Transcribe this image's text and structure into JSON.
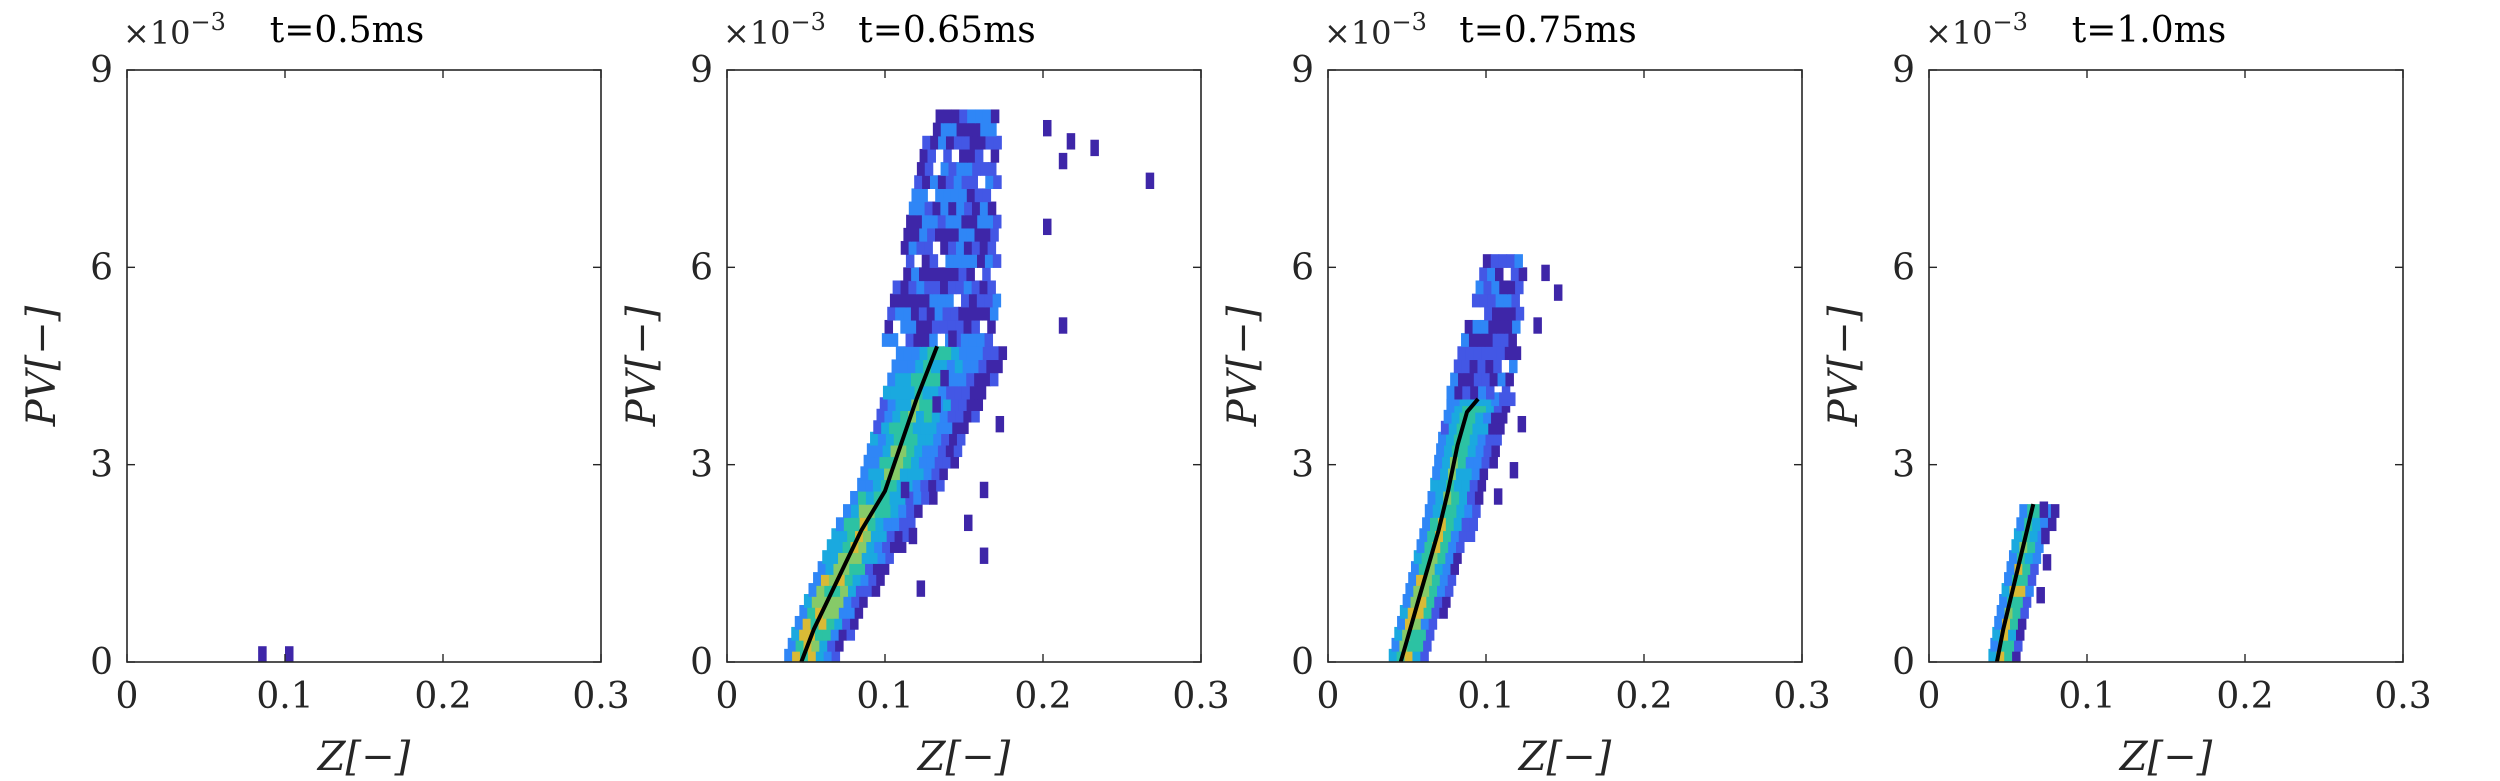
{
  "chart_data": [
    {
      "type": "heatmap",
      "title": "t=0.5ms",
      "xlabel": "Z[−]",
      "ylabel": "PV[−]",
      "xlim": [
        0,
        0.3
      ],
      "ylim": [
        0,
        0.009
      ],
      "xticks": [
        "0",
        "0.1",
        "0.2",
        "0.3"
      ],
      "yticks": [
        "0",
        "3",
        "6",
        "9"
      ],
      "y_exponent": "×10",
      "y_exponent_power": "−3",
      "bins": [
        [
          0.083,
          0.0
        ],
        [
          0.1,
          0.0
        ]
      ],
      "mean_curve": []
    },
    {
      "type": "heatmap",
      "title": "t=0.65ms",
      "xlabel": "Z[−]",
      "ylabel": "PV[−]",
      "xlim": [
        0,
        0.3
      ],
      "ylim": [
        0,
        0.009
      ],
      "xticks": [
        "0",
        "0.1",
        "0.2",
        "0.3"
      ],
      "yticks": [
        "0",
        "3",
        "6",
        "9"
      ],
      "y_exponent": "×10",
      "y_exponent_power": "−3",
      "scatter_bins": [
        [
          0.2,
          0.008
        ],
        [
          0.215,
          0.0078
        ],
        [
          0.23,
          0.0077
        ],
        [
          0.265,
          0.0072
        ],
        [
          0.21,
          0.0075
        ],
        [
          0.2,
          0.0065
        ],
        [
          0.21,
          0.005
        ],
        [
          0.17,
          0.0035
        ],
        [
          0.16,
          0.0025
        ],
        [
          0.15,
          0.002
        ],
        [
          0.16,
          0.0015
        ],
        [
          0.12,
          0.001
        ],
        [
          0.115,
          0.0018
        ],
        [
          0.11,
          0.0025
        ],
        [
          0.13,
          0.0038
        ],
        [
          0.135,
          0.0042
        ],
        [
          0.14,
          0.0048
        ]
      ],
      "mean_curve": [
        [
          0.047,
          0.0
        ],
        [
          0.055,
          0.0005
        ],
        [
          0.065,
          0.001
        ],
        [
          0.075,
          0.0015
        ],
        [
          0.085,
          0.002
        ],
        [
          0.1,
          0.0026
        ],
        [
          0.11,
          0.0033
        ],
        [
          0.12,
          0.004
        ],
        [
          0.133,
          0.0048
        ]
      ]
    },
    {
      "type": "heatmap",
      "title": "t=0.75ms",
      "xlabel": "Z[−]",
      "ylabel": "PV[−]",
      "xlim": [
        0,
        0.3
      ],
      "ylim": [
        0,
        0.009
      ],
      "xticks": [
        "0",
        "0.1",
        "0.2",
        "0.3"
      ],
      "yticks": [
        "0",
        "3",
        "6",
        "9"
      ],
      "y_exponent": "×10",
      "y_exponent_power": "−3",
      "scatter_bins": [
        [
          0.135,
          0.0058
        ],
        [
          0.143,
          0.0055
        ],
        [
          0.13,
          0.005
        ],
        [
          0.12,
          0.0035
        ],
        [
          0.115,
          0.0028
        ],
        [
          0.105,
          0.0024
        ]
      ],
      "mean_curve": [
        [
          0.046,
          0.0
        ],
        [
          0.052,
          0.0005
        ],
        [
          0.058,
          0.001
        ],
        [
          0.064,
          0.0015
        ],
        [
          0.07,
          0.002
        ],
        [
          0.076,
          0.0026
        ],
        [
          0.082,
          0.0033
        ],
        [
          0.088,
          0.0038
        ],
        [
          0.095,
          0.004
        ]
      ]
    },
    {
      "type": "heatmap",
      "title": "t=1.0ms",
      "xlabel": "Z[−]",
      "ylabel": "PV[−]",
      "xlim": [
        0,
        0.3
      ],
      "ylim": [
        0,
        0.009
      ],
      "xticks": [
        "0",
        "0.1",
        "0.2",
        "0.3"
      ],
      "yticks": [
        "0",
        "3",
        "6",
        "9"
      ],
      "y_exponent": "×10",
      "y_exponent_power": "−3",
      "scatter_bins": [
        [
          0.07,
          0.0022
        ],
        [
          0.071,
          0.0018
        ],
        [
          0.072,
          0.0014
        ],
        [
          0.068,
          0.0009
        ]
      ],
      "mean_curve": [
        [
          0.043,
          0.0
        ],
        [
          0.047,
          0.0005
        ],
        [
          0.052,
          0.001
        ],
        [
          0.057,
          0.0015
        ],
        [
          0.062,
          0.002
        ],
        [
          0.066,
          0.0024
        ]
      ]
    }
  ],
  "colors": {
    "axis": "#262626",
    "curve": "#000000",
    "colormap": [
      "#3e26a8",
      "#4357e5",
      "#2f86f6",
      "#1aa9df",
      "#2cc2a3",
      "#86ca68",
      "#d9ba36",
      "#f9fb15"
    ]
  }
}
